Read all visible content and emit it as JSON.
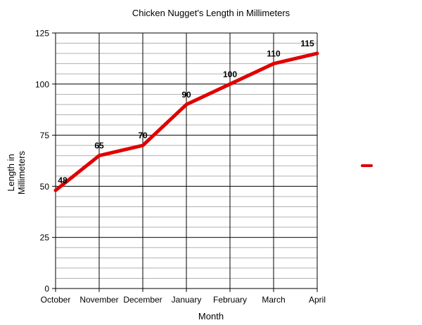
{
  "chart_data": {
    "type": "line",
    "title": "Chicken Nugget's Length in Millimeters",
    "xlabel": "Month",
    "ylabel": "Length in Millimeters",
    "ylabel_lines": [
      "Length in",
      "Millimeters"
    ],
    "categories": [
      "October",
      "November",
      "December",
      "January",
      "February",
      "March",
      "April"
    ],
    "series": [
      {
        "name": "",
        "color": "#e00000",
        "values": [
          48,
          65,
          70,
          90,
          100,
          110,
          115
        ],
        "data_labels": [
          "48",
          "65",
          "70",
          "90",
          "100",
          "110",
          "115"
        ]
      }
    ],
    "ylim": [
      0,
      125
    ],
    "yticks": [
      0,
      25,
      50,
      75,
      100,
      125
    ],
    "ytick_labels": [
      "0",
      "25",
      "50",
      "75",
      "100",
      "125"
    ],
    "minor_ystep": 5,
    "grid": true,
    "legend": {
      "position": "right",
      "entries": [
        {
          "label": "",
          "color": "#e00000"
        }
      ]
    }
  }
}
